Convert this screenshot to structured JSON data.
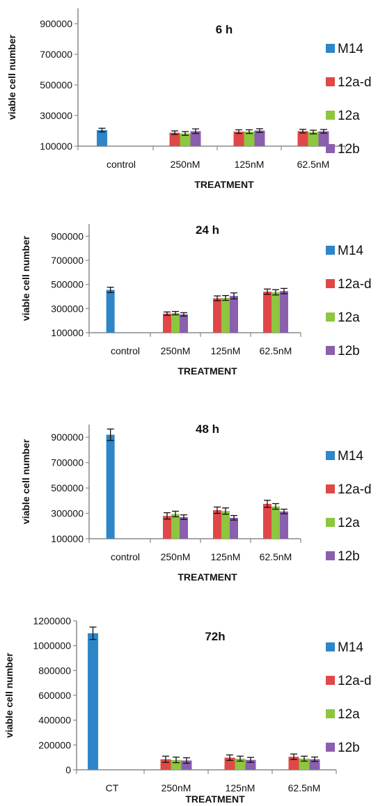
{
  "palette": {
    "M14": "#2E86C8",
    "12a-d": "#E04848",
    "12a": "#8DC63F",
    "12b": "#8A5FAE"
  },
  "chart_data": [
    {
      "type": "bar",
      "title": "6 h",
      "xlabel": "TREATMENT",
      "ylabel": "viable cell number",
      "ylim": [
        100000,
        1000000
      ],
      "yticks": [
        100000,
        300000,
        500000,
        700000,
        900000
      ],
      "ytick_labels": [
        "100000",
        "300000",
        "500000",
        "700000",
        "900000"
      ],
      "categories": [
        "control",
        "250nM",
        "125nM",
        "62.5nM"
      ],
      "legend": [
        "M14",
        "12a-d",
        "12a",
        "12b"
      ],
      "legend_position": "right",
      "grid": false,
      "series": [
        {
          "name": "M14",
          "values": [
            205000,
            null,
            null,
            null
          ],
          "errors": [
            12000,
            null,
            null,
            null
          ]
        },
        {
          "name": "12a-d",
          "values": [
            null,
            188000,
            195000,
            198000
          ],
          "errors": [
            null,
            12000,
            12000,
            12000
          ]
        },
        {
          "name": "12a",
          "values": [
            null,
            183000,
            195000,
            192000
          ],
          "errors": [
            null,
            12000,
            12000,
            12000
          ]
        },
        {
          "name": "12b",
          "values": [
            null,
            198000,
            202000,
            197000
          ],
          "errors": [
            null,
            15000,
            12000,
            12000
          ]
        }
      ]
    },
    {
      "type": "bar",
      "title": "24 h",
      "xlabel": "TREATMENT",
      "ylabel": "viable cell number",
      "ylim": [
        100000,
        1000000
      ],
      "yticks": [
        100000,
        300000,
        500000,
        700000,
        900000
      ],
      "ytick_labels": [
        "100000",
        "300000",
        "500000",
        "700000",
        "900000"
      ],
      "categories": [
        "control",
        "250nM",
        "125nM",
        "62.5nM"
      ],
      "legend": [
        "M14",
        "12a-d",
        "12a",
        "12b"
      ],
      "legend_position": "right",
      "grid": false,
      "series": [
        {
          "name": "M14",
          "values": [
            455000,
            null,
            null,
            null
          ],
          "errors": [
            22000,
            null,
            null,
            null
          ]
        },
        {
          "name": "12a-d",
          "values": [
            null,
            258000,
            385000,
            440000
          ],
          "errors": [
            null,
            14000,
            20000,
            22000
          ]
        },
        {
          "name": "12a",
          "values": [
            null,
            262000,
            388000,
            435000
          ],
          "errors": [
            null,
            14000,
            20000,
            22000
          ]
        },
        {
          "name": "12b",
          "values": [
            null,
            252000,
            405000,
            445000
          ],
          "errors": [
            null,
            14000,
            25000,
            22000
          ]
        }
      ]
    },
    {
      "type": "bar",
      "title": "48 h",
      "xlabel": "TREATMENT",
      "ylabel": "viable cell number",
      "ylim": [
        100000,
        1000000
      ],
      "yticks": [
        100000,
        300000,
        500000,
        700000,
        900000
      ],
      "ytick_labels": [
        "100000",
        "300000",
        "500000",
        "700000",
        "900000"
      ],
      "categories": [
        "control",
        "250nM",
        "125nM",
        "62.5nM"
      ],
      "legend": [
        "M14",
        "12a-d",
        "12a",
        "12b"
      ],
      "legend_position": "right",
      "grid": false,
      "series": [
        {
          "name": "M14",
          "values": [
            920000,
            null,
            null,
            null
          ],
          "errors": [
            45000,
            null,
            null,
            null
          ]
        },
        {
          "name": "12a-d",
          "values": [
            null,
            280000,
            325000,
            375000
          ],
          "errors": [
            null,
            25000,
            25000,
            28000
          ]
        },
        {
          "name": "12a",
          "values": [
            null,
            295000,
            318000,
            355000
          ],
          "errors": [
            null,
            22000,
            25000,
            22000
          ]
        },
        {
          "name": "12b",
          "values": [
            null,
            270000,
            265000,
            315000
          ],
          "errors": [
            null,
            18000,
            18000,
            18000
          ]
        }
      ]
    },
    {
      "type": "bar",
      "title": "72h",
      "xlabel": "TREATMENT",
      "ylabel": "viable cell number",
      "ylim": [
        0,
        1200000
      ],
      "yticks": [
        0,
        200000,
        400000,
        600000,
        800000,
        1000000,
        1200000
      ],
      "ytick_labels": [
        "0",
        "200000",
        "400000",
        "600000",
        "800000",
        "1000000",
        "1200000"
      ],
      "categories": [
        "CT",
        "250nM",
        "125nM",
        "62.5nM"
      ],
      "legend": [
        "M14",
        "12a-d",
        "12a",
        "12b"
      ],
      "legend_position": "right",
      "grid": false,
      "series": [
        {
          "name": "M14",
          "values": [
            1100000,
            null,
            null,
            null
          ],
          "errors": [
            50000,
            null,
            null,
            null
          ]
        },
        {
          "name": "12a-d",
          "values": [
            null,
            85000,
            98000,
            105000
          ],
          "errors": [
            null,
            25000,
            22000,
            22000
          ]
        },
        {
          "name": "12a",
          "values": [
            null,
            80000,
            90000,
            90000
          ],
          "errors": [
            null,
            22000,
            20000,
            20000
          ]
        },
        {
          "name": "12b",
          "values": [
            null,
            75000,
            80000,
            85000
          ],
          "errors": [
            null,
            22000,
            20000,
            18000
          ]
        }
      ]
    }
  ]
}
